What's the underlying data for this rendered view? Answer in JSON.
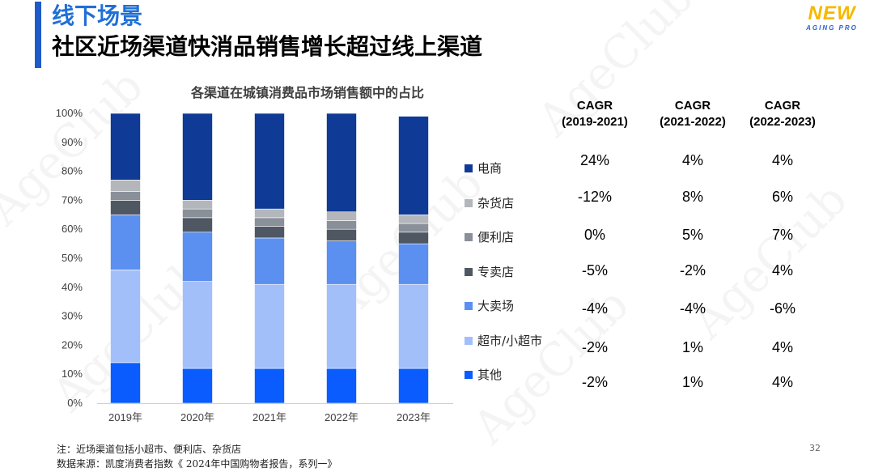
{
  "header": {
    "title": "线下场景",
    "subtitle": "社区近场渠道快消品销售增长超过线上渠道"
  },
  "logo": {
    "top": "NEW",
    "bottom": "AGING PRO"
  },
  "chart_data": {
    "type": "bar",
    "stacked": true,
    "title": "各渠道在城镇消费品市场销售额中的占比",
    "xlabel": "",
    "ylabel": "",
    "categories": [
      "2019年",
      "2020年",
      "2021年",
      "2022年",
      "2023年"
    ],
    "ylim": [
      0,
      100
    ],
    "yticks": [
      "0%",
      "10%",
      "20%",
      "30%",
      "40%",
      "50%",
      "60%",
      "70%",
      "80%",
      "90%",
      "100%"
    ],
    "grid": false,
    "legend_position": "right",
    "series": [
      {
        "name": "其他",
        "color": "#0a5cff",
        "values": [
          14,
          12,
          12,
          12,
          12
        ]
      },
      {
        "name": "超市/小超市",
        "color": "#a3bffa",
        "values": [
          32,
          30,
          29,
          29,
          29
        ]
      },
      {
        "name": "大卖场",
        "color": "#5b8ff0",
        "values": [
          19,
          17,
          16,
          15,
          14
        ]
      },
      {
        "name": "专卖店",
        "color": "#4f5862",
        "values": [
          5,
          5,
          4,
          4,
          4
        ]
      },
      {
        "name": "便利店",
        "color": "#8a9099",
        "values": [
          3,
          3,
          3,
          3,
          3
        ]
      },
      {
        "name": "杂货店",
        "color": "#b3b6ba",
        "values": [
          4,
          3,
          3,
          3,
          3
        ]
      },
      {
        "name": "电商",
        "color": "#0f3a96",
        "values": [
          23,
          30,
          33,
          34,
          34
        ]
      }
    ]
  },
  "legend": [
    {
      "label": "电商",
      "color": "#0f3a96"
    },
    {
      "label": "杂货店",
      "color": "#b3b6ba"
    },
    {
      "label": "便利店",
      "color": "#8a9099"
    },
    {
      "label": "专卖店",
      "color": "#4f5862"
    },
    {
      "label": "大卖场",
      "color": "#5b8ff0"
    },
    {
      "label": "超市/小超市",
      "color": "#a3bffa"
    },
    {
      "label": "其他",
      "color": "#0a5cff"
    }
  ],
  "cagr": {
    "headers": [
      {
        "line1": "CAGR",
        "line2": "(2019-2021)"
      },
      {
        "line1": "CAGR",
        "line2": "(2021-2022)"
      },
      {
        "line1": "CAGR",
        "line2": "(2022-2023)"
      }
    ],
    "rows": [
      [
        "24%",
        "4%",
        "4%"
      ],
      [
        "-12%",
        "8%",
        "6%"
      ],
      [
        "0%",
        "5%",
        "7%"
      ],
      [
        "-5%",
        "-2%",
        "4%"
      ],
      [
        "-4%",
        "-4%",
        "-6%"
      ],
      [
        "-2%",
        "1%",
        "4%"
      ],
      [
        "-2%",
        "1%",
        "4%"
      ]
    ]
  },
  "footnote": {
    "note": "注：近场渠道包括小超市、便利店、杂货店",
    "source": "数据来源：凯度消费者指数《 2024年中国购物者报告，系列一》"
  },
  "page_number": "32",
  "watermark": "AgeClub"
}
